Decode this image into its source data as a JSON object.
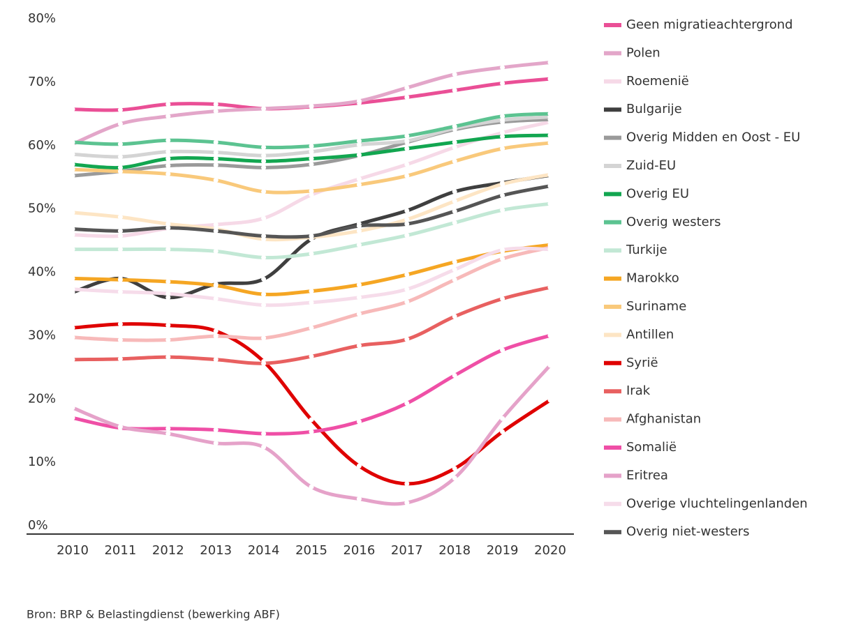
{
  "chart_data": {
    "type": "line",
    "source": "Bron: BRP & Belastingdienst (bewerking ABF)",
    "x": [
      "2010",
      "2011",
      "2012",
      "2013",
      "2014",
      "2015",
      "2016",
      "2017",
      "2018",
      "2019",
      "2020"
    ],
    "ylim": [
      0,
      80
    ],
    "yticks": [
      {
        "value": 0,
        "label": "0%"
      },
      {
        "value": 10,
        "label": "10%"
      },
      {
        "value": 20,
        "label": "20%"
      },
      {
        "value": 30,
        "label": "30%"
      },
      {
        "value": 40,
        "label": "40%"
      },
      {
        "value": 50,
        "label": "50%"
      },
      {
        "value": 60,
        "label": "60%"
      },
      {
        "value": 70,
        "label": "70%"
      },
      {
        "value": 80,
        "label": "80%"
      }
    ],
    "series": [
      {
        "name": "Geen migratieachtergrond",
        "color": "#ea4f96",
        "values": [
          65.5,
          65.4,
          66.3,
          66.3,
          65.6,
          65.9,
          66.5,
          67.4,
          68.5,
          69.6,
          70.3
        ]
      },
      {
        "name": "Polen",
        "color": "#e3a6c9",
        "values": [
          60,
          63.2,
          64.4,
          65.2,
          65.6,
          66,
          66.8,
          68.9,
          71,
          72.1,
          72.9
        ]
      },
      {
        "name": "Roemenië",
        "color": "#f6d9e7",
        "values": [
          45.7,
          45.5,
          46.7,
          47.3,
          48.3,
          52,
          54.5,
          56.8,
          59.5,
          61.8,
          63.5
        ]
      },
      {
        "name": "Bulgarije",
        "color": "#3f3f3f",
        "values": [
          36.6,
          38.8,
          35.8,
          37.9,
          38.7,
          45,
          47.4,
          49.5,
          52.5,
          53.9,
          55.1
        ]
      },
      {
        "name": "Overig Midden en Oost - EU",
        "color": "#9a9a9a",
        "values": [
          55,
          55.7,
          56.6,
          56.7,
          56.3,
          56.8,
          58.2,
          60.3,
          62.3,
          63.5,
          63.9
        ]
      },
      {
        "name": "Zuid-EU",
        "color": "#d4d4d4",
        "values": [
          58.4,
          58,
          58.8,
          58.7,
          58.2,
          58.8,
          59.9,
          60.5,
          62.5,
          63.8,
          64.3
        ]
      },
      {
        "name": "Overig EU",
        "color": "#12a650",
        "values": [
          56.8,
          56.3,
          57.7,
          57.7,
          57.3,
          57.7,
          58.3,
          59.3,
          60.3,
          61.2,
          61.4
        ]
      },
      {
        "name": "Overig westers",
        "color": "#5cc391",
        "values": [
          60.3,
          60,
          60.6,
          60.3,
          59.5,
          59.7,
          60.5,
          61.3,
          62.8,
          64.4,
          64.8
        ]
      },
      {
        "name": "Turkije",
        "color": "#c2e8d5",
        "values": [
          43.4,
          43.4,
          43.4,
          43.1,
          42.1,
          42.7,
          44.1,
          45.6,
          47.6,
          49.6,
          50.6
        ]
      },
      {
        "name": "Marokko",
        "color": "#f5a623",
        "values": [
          38.8,
          38.6,
          38.3,
          37.7,
          36.3,
          36.8,
          37.8,
          39.4,
          41.4,
          43.1,
          44.1
        ]
      },
      {
        "name": "Suriname",
        "color": "#f9c97b",
        "values": [
          56,
          55.7,
          55.3,
          54.3,
          52.5,
          52.6,
          53.6,
          55,
          57.3,
          59.3,
          60.2
        ]
      },
      {
        "name": "Antillen",
        "color": "#fde5c4",
        "values": [
          49.2,
          48.5,
          47.4,
          46.6,
          45,
          45.3,
          46.3,
          48.1,
          51,
          53.7,
          55.2
        ]
      },
      {
        "name": "Syrië",
        "color": "#df0000",
        "values": [
          31,
          31.6,
          31.4,
          30.5,
          25.7,
          16.5,
          9.2,
          6.4,
          8.8,
          14.6,
          19.6
        ]
      },
      {
        "name": "Irak",
        "color": "#e86060",
        "values": [
          26,
          26.1,
          26.4,
          26,
          25.4,
          26.5,
          28.2,
          29.2,
          32.8,
          35.6,
          37.4
        ]
      },
      {
        "name": "Afghanistan",
        "color": "#f7b9b9",
        "values": [
          29.5,
          29.1,
          29.1,
          29.7,
          29.4,
          31,
          33.2,
          35.1,
          38.6,
          41.9,
          43.7
        ]
      },
      {
        "name": "Somalië",
        "color": "#ef4fa6",
        "values": [
          16.8,
          15.2,
          15.1,
          14.9,
          14.3,
          14.6,
          16.2,
          19.1,
          23.5,
          27.5,
          29.8
        ]
      },
      {
        "name": "Eritrea",
        "color": "#e5a2c9",
        "values": [
          18.4,
          15.4,
          14.3,
          12.8,
          12.2,
          5.9,
          4,
          3.4,
          7.3,
          16.7,
          25.1
        ]
      },
      {
        "name": "Overige vluchtelingenlanden",
        "color": "#f6dcea",
        "values": [
          37.1,
          36.7,
          36.4,
          35.6,
          34.6,
          35,
          35.8,
          37.1,
          40.2,
          43.3,
          43.4
        ]
      },
      {
        "name": "Overig niet-westers",
        "color": "#555555",
        "values": [
          46.6,
          46.3,
          46.8,
          46.3,
          45.5,
          45.5,
          47.1,
          47.4,
          49.4,
          51.9,
          53.4
        ]
      }
    ]
  }
}
